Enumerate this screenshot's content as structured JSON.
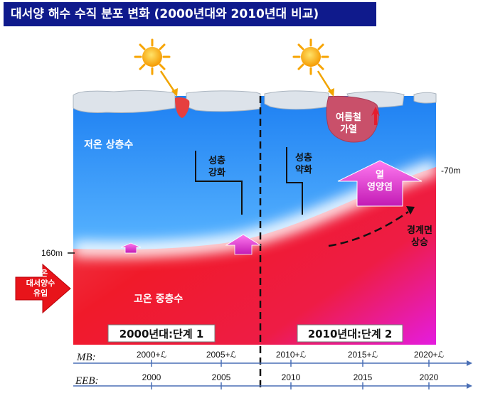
{
  "title": "대서양 해수 수직 분포 변화 (2000년대와 2010년대 비교)",
  "labels": {
    "cold_upper": "저온 상층수",
    "warm_mid": "고온 중층수",
    "strat_strong": [
      "성층",
      "강화"
    ],
    "strat_weak": [
      "성층",
      "약화"
    ],
    "summer_heating": [
      "여름철",
      "가열"
    ],
    "heat_nutrient": [
      "열",
      "영양염"
    ],
    "boundary_rise": [
      "경계면",
      "상승"
    ],
    "atlantic_inflow": [
      "고온",
      "대서양수",
      "유입"
    ],
    "depth_160": "160m",
    "depth_70": "-70m",
    "stage1": "2000년대:단계 1",
    "stage2": "2010년대:단계 2"
  },
  "axes": {
    "mb_label": "MB:",
    "mb_ticks": [
      "2000+ℒ",
      "2005+ℒ",
      "2010+ℒ",
      "2015+ℒ",
      "2020+ℒ"
    ],
    "eeb_label": "EEB:",
    "eeb_ticks": [
      "2000",
      "2005",
      "2010",
      "2015",
      "2020"
    ]
  },
  "colors": {
    "title_bg": "#0f1a8c",
    "cold_water": "#2f8ff0",
    "warm_water": "#f0232e",
    "boundary": "#ffffff",
    "heat_arrow": "#e23ccf",
    "inflow_arrow": "#e8141a",
    "sun": "#ffb400"
  }
}
